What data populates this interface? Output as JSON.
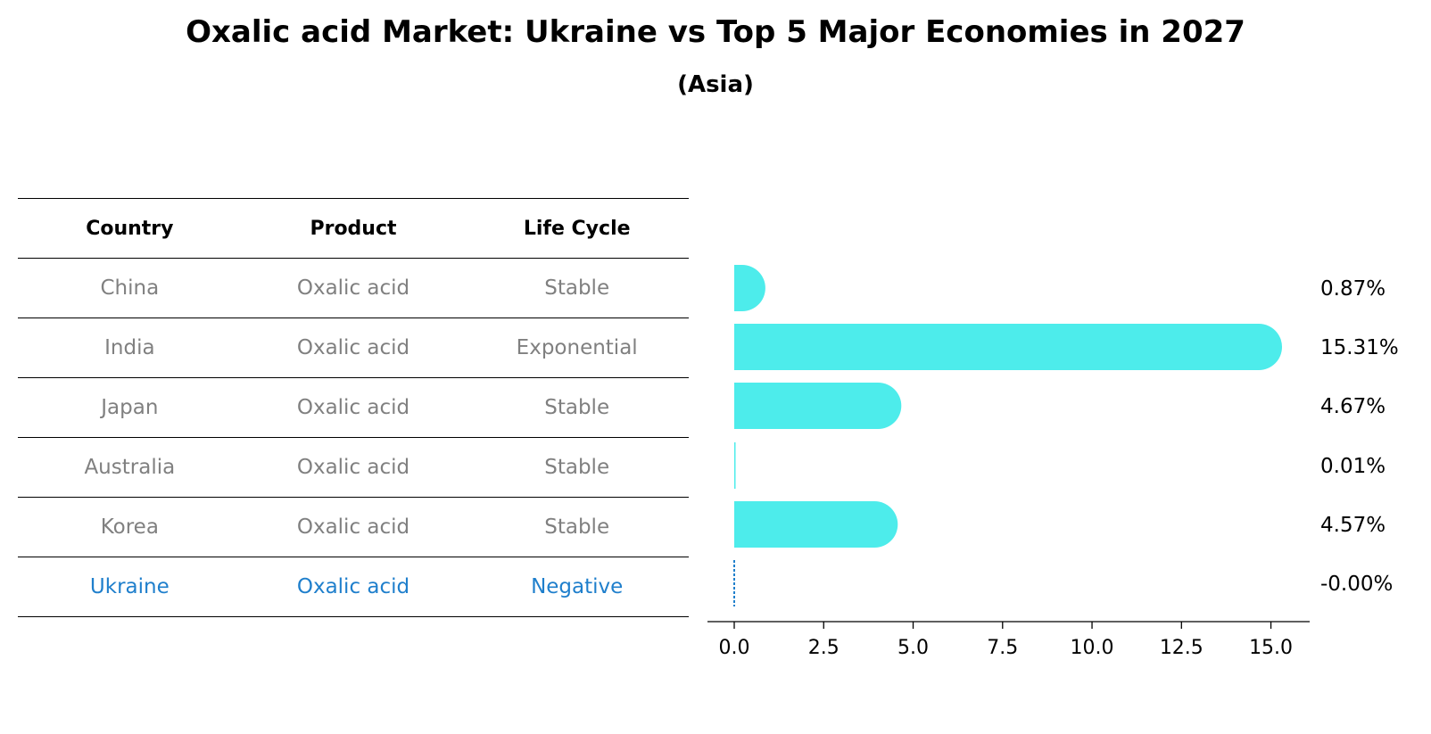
{
  "title": "Oxalic acid Market: Ukraine vs Top 5 Major Economies in 2027",
  "subtitle": "(Asia)",
  "table": {
    "headers": [
      "Country",
      "Product",
      "Life Cycle"
    ],
    "rows": [
      [
        "China",
        "Oxalic acid",
        "Stable"
      ],
      [
        "India",
        "Oxalic acid",
        "Exponential"
      ],
      [
        "Japan",
        "Oxalic acid",
        "Stable"
      ],
      [
        "Australia",
        "Oxalic acid",
        "Stable"
      ],
      [
        "Korea",
        "Oxalic acid",
        "Stable"
      ],
      [
        "Ukraine",
        "Oxalic acid",
        "Negative"
      ]
    ],
    "highlight_row": 5
  },
  "colors": {
    "bar": "#4deceb",
    "highlight": "#1f7fcc",
    "muted": "#808080"
  },
  "chart_data": {
    "type": "bar",
    "orientation": "horizontal",
    "categories": [
      "China",
      "India",
      "Japan",
      "Australia",
      "Korea",
      "Ukraine"
    ],
    "values": [
      0.87,
      15.31,
      4.67,
      0.01,
      4.57,
      -0.0
    ],
    "value_labels": [
      "0.87%",
      "15.31%",
      "4.67%",
      "0.01%",
      "4.57%",
      "-0.00%"
    ],
    "xlim": [
      -0.75,
      16.1
    ],
    "xticks": [
      0.0,
      2.5,
      5.0,
      7.5,
      10.0,
      12.5,
      15.0
    ],
    "xtick_labels": [
      "0.0",
      "2.5",
      "5.0",
      "7.5",
      "10.0",
      "12.5",
      "15.0"
    ],
    "xlabel": "",
    "ylabel": "",
    "grid": false
  }
}
